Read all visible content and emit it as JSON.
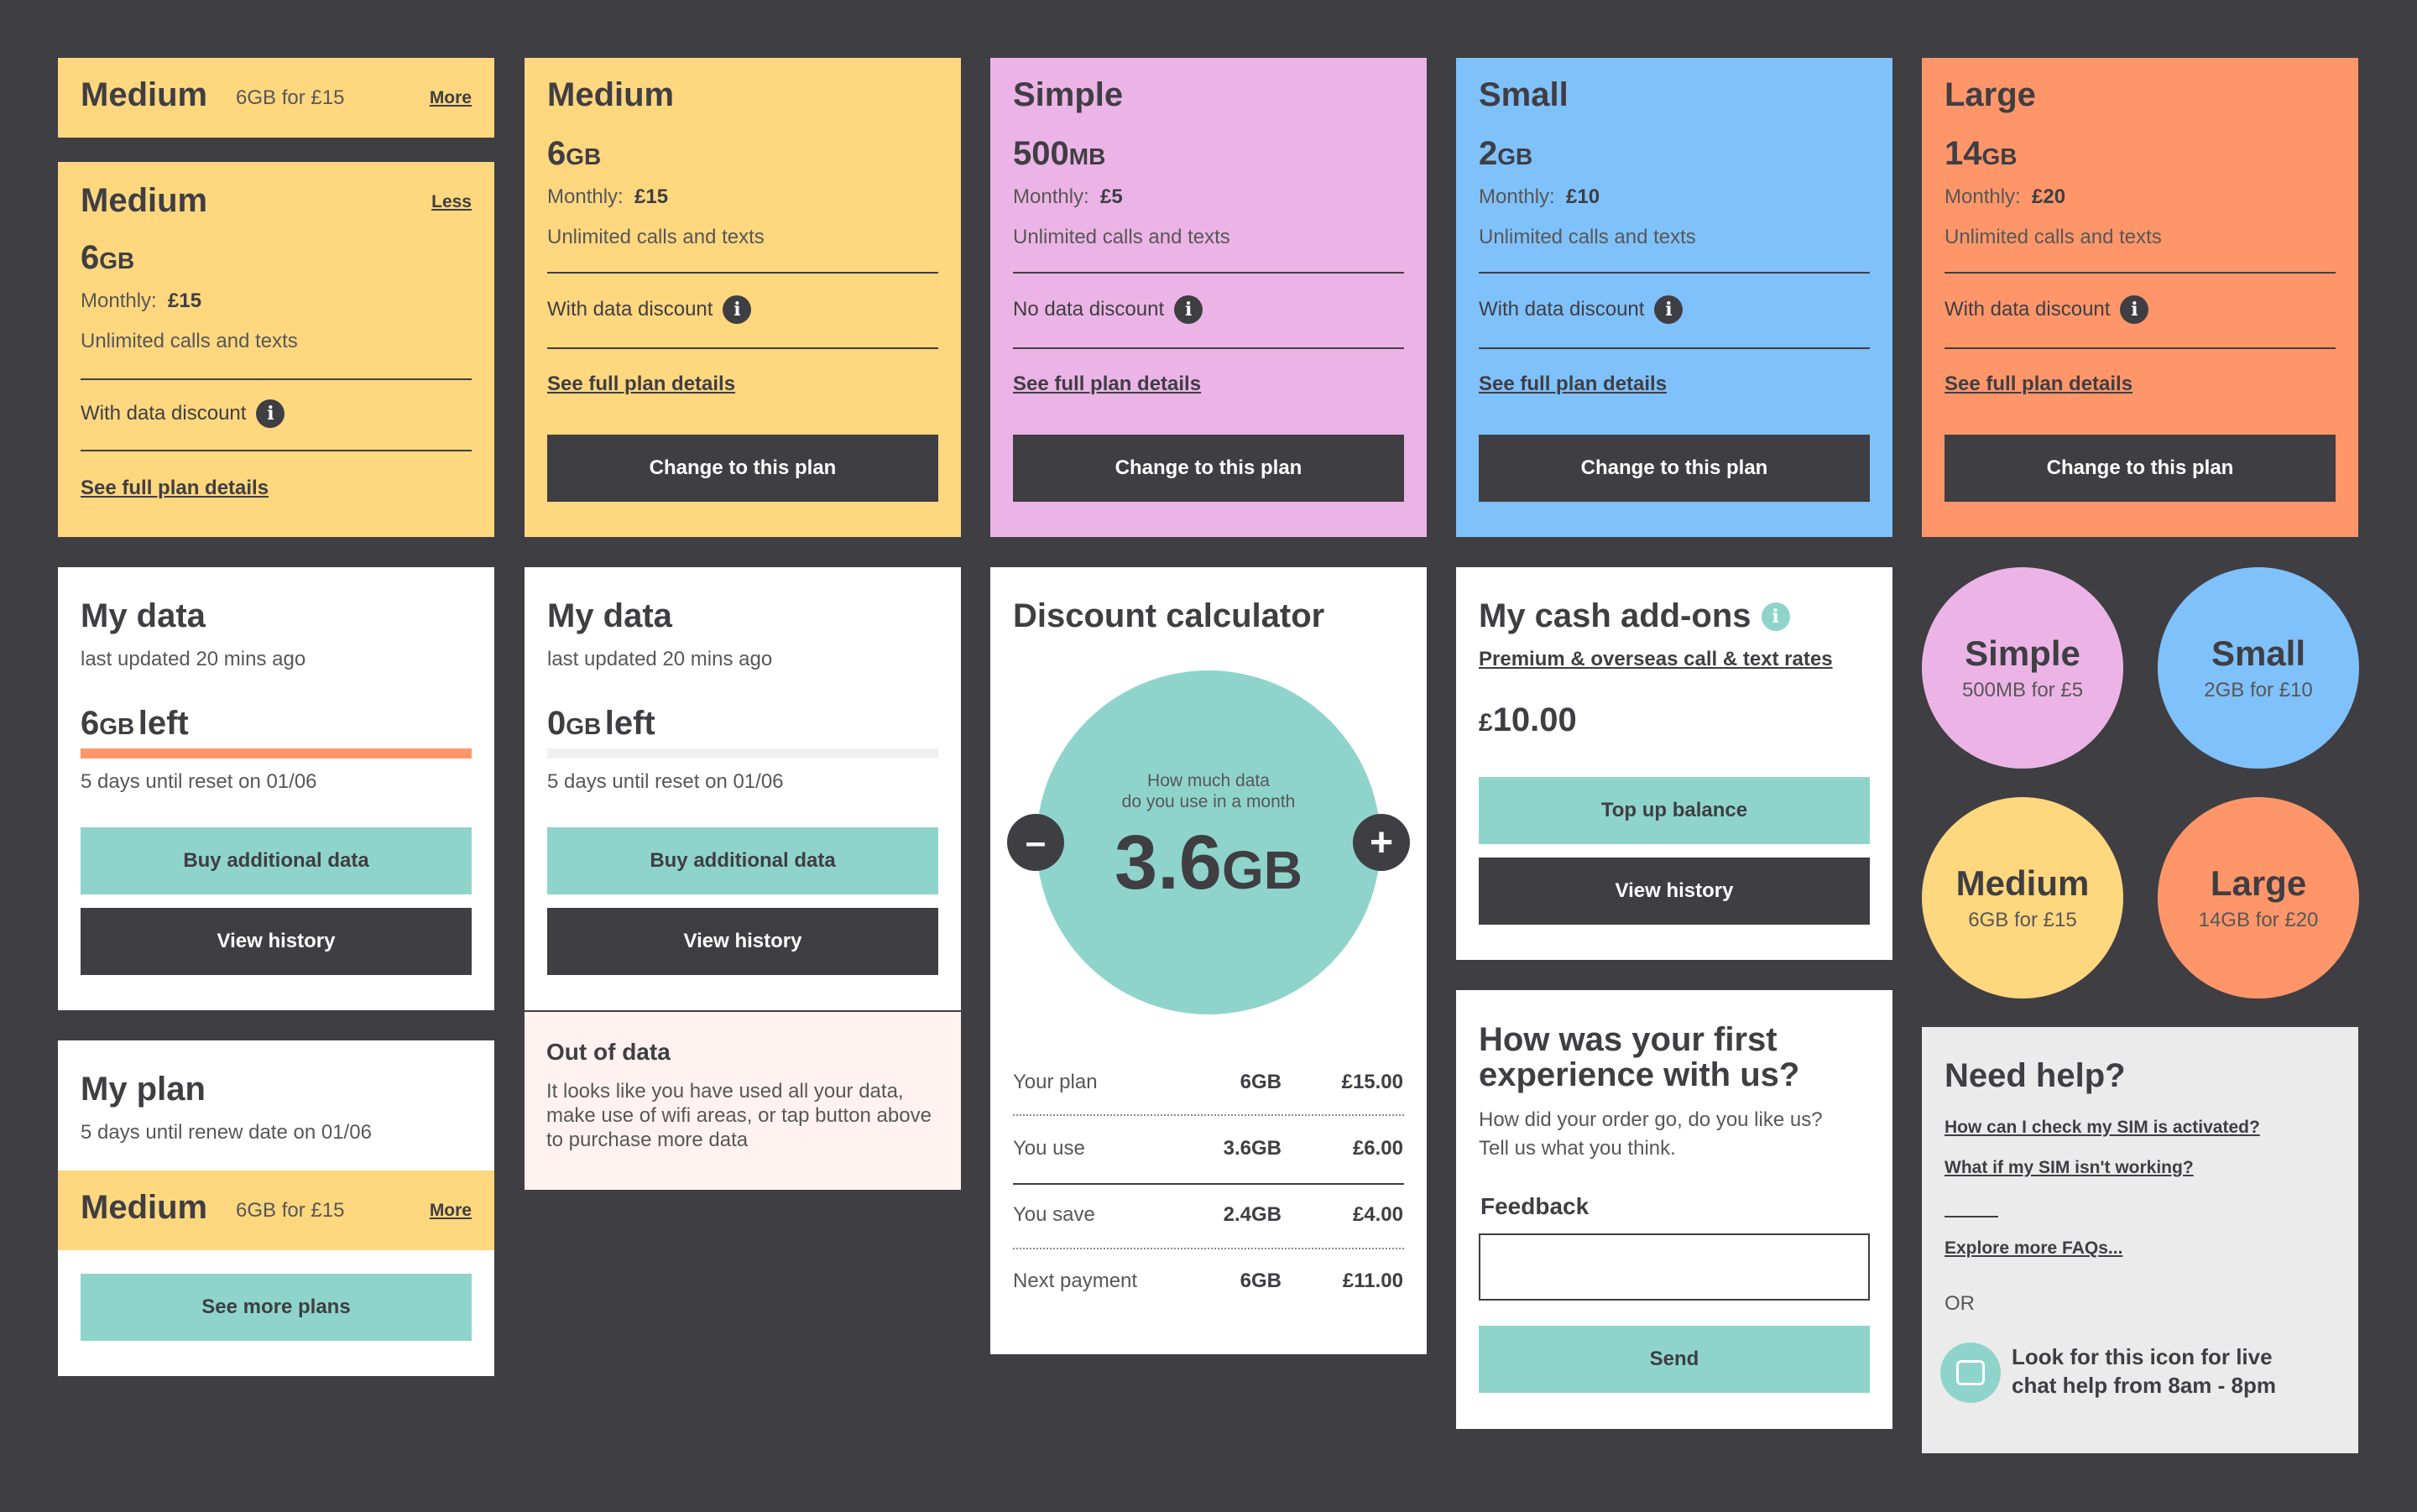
{
  "colors": {
    "background": "#3f3e43",
    "yellow": "#fed77e",
    "pink": "#ecb4e6",
    "blue": "#7fc1fb",
    "orange": "#ff9669",
    "teal": "#8fd4cb",
    "dark": "#3f3e43"
  },
  "collapsed_medium": {
    "title": "Medium",
    "summary": "6GB for £15",
    "toggle": "More"
  },
  "expanded_medium": {
    "title": "Medium",
    "data_num": "6",
    "data_unit": "GB",
    "monthly_label": "Monthly:",
    "monthly_value": "£15",
    "calls": "Unlimited calls and texts",
    "discount": "With data discount",
    "details_link": "See full plan details",
    "toggle": "Less"
  },
  "plans": [
    {
      "title": "Medium",
      "data_num": "6",
      "data_unit": "GB",
      "monthly_label": "Monthly:",
      "monthly_value": "£15",
      "calls": "Unlimited calls and texts",
      "discount": "With data discount",
      "details_link": "See full plan details",
      "cta": "Change to this plan"
    },
    {
      "title": "Simple",
      "data_num": "500",
      "data_unit": "MB",
      "monthly_label": "Monthly:",
      "monthly_value": "£5",
      "calls": "Unlimited calls and texts",
      "discount": "No data discount",
      "details_link": "See full plan details",
      "cta": "Change to this plan"
    },
    {
      "title": "Small",
      "data_num": "2",
      "data_unit": "GB",
      "monthly_label": "Monthly:",
      "monthly_value": "£10",
      "calls": "Unlimited calls and texts",
      "discount": "With data discount",
      "details_link": "See full plan details",
      "cta": "Change to this plan"
    },
    {
      "title": "Large",
      "data_num": "14",
      "data_unit": "GB",
      "monthly_label": "Monthly:",
      "monthly_value": "£20",
      "calls": "Unlimited calls and texts",
      "discount": "With data discount",
      "details_link": "See full plan details",
      "cta": "Change to this plan"
    }
  ],
  "my_data_1": {
    "title": "My data",
    "updated": "last updated 20 mins ago",
    "left_num": "6",
    "left_unit": "GB",
    "left_word": "left",
    "usage_fraction": 1.0,
    "reset": "5 days until reset on 01/06",
    "buy": "Buy additional data",
    "history": "View history"
  },
  "my_data_2": {
    "title": "My data",
    "updated": "last updated 20 mins ago",
    "left_num": "0",
    "left_unit": "GB",
    "left_word": "left",
    "usage_fraction": 0.0,
    "reset": "5 days until reset on 01/06",
    "buy": "Buy additional data",
    "history": "View history",
    "out_title": "Out of data",
    "out_text": "It looks like you have used all your data, make use of wifi areas, or tap button above to purchase more data"
  },
  "my_plan": {
    "title": "My plan",
    "renew": "5 days until renew date on 01/06",
    "plan_title": "Medium",
    "plan_summary": "6GB for £15",
    "toggle": "More",
    "see_more": "See more plans"
  },
  "calculator": {
    "title": "Discount calculator",
    "prompt_1": "How much data",
    "prompt_2": "do you use in a month",
    "value_num": "3.6",
    "value_unit": "GB",
    "minus": "–",
    "plus": "+",
    "rows": [
      {
        "label": "Your plan",
        "data": "6GB",
        "price": "£15.00"
      },
      {
        "label": "You use",
        "data": "3.6GB",
        "price": "£6.00"
      },
      {
        "label": "You save",
        "data": "2.4GB",
        "price": "£4.00"
      },
      {
        "label": "Next payment",
        "data": "6GB",
        "price": "£11.00"
      }
    ]
  },
  "cash_addons": {
    "title": "My cash add-ons",
    "rates_link": "Premium & overseas call & text rates",
    "balance_currency": "£",
    "balance_value": "10.00",
    "top_up": "Top up balance",
    "history": "View history"
  },
  "feedback": {
    "title_1": "How was your first",
    "title_2": "experience with us?",
    "sub_1": "How did your order go, do you like us?",
    "sub_2": "Tell us what you think.",
    "label": "Feedback",
    "placeholder": "",
    "send": "Send"
  },
  "plan_circles": [
    {
      "title": "Simple",
      "summary": "500MB for £5"
    },
    {
      "title": "Small",
      "summary": "2GB for £10"
    },
    {
      "title": "Medium",
      "summary": "6GB for £15"
    },
    {
      "title": "Large",
      "summary": "14GB for £20"
    }
  ],
  "help": {
    "title": "Need help?",
    "faq_1": "How can I check my SIM is activated?",
    "faq_2": "What if my SIM isn't working?",
    "explore": "Explore more FAQs...",
    "or": "OR",
    "chat_1": "Look for this icon for live",
    "chat_2": "chat help from 8am - 8pm"
  }
}
